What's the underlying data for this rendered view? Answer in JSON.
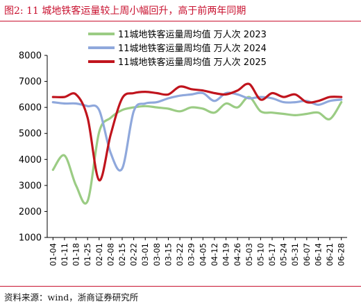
{
  "title": "图2:   11 城地铁客运量较上周小幅回升，高于前两年同期",
  "source": "资料来源：wind，浙商证券研究所",
  "chart_data": {
    "type": "line",
    "title": "",
    "xlabel": "",
    "ylabel": "",
    "ylim": [
      1000,
      8000
    ],
    "yticks": [
      1000,
      2000,
      3000,
      4000,
      5000,
      6000,
      7000,
      8000
    ],
    "grid": false,
    "legend_position": "top-center",
    "x": [
      "01-04",
      "01-11",
      "01-18",
      "01-25",
      "02-01",
      "02-08",
      "02-15",
      "02-22",
      "03-01",
      "03-08",
      "03-15",
      "03-22",
      "03-29",
      "04-05",
      "04-12",
      "04-19",
      "04-26",
      "05-03",
      "05-10",
      "05-17",
      "05-24",
      "05-31",
      "06-07",
      "06-14",
      "06-21",
      "06-28"
    ],
    "series": [
      {
        "name": "11城地铁客运量周均值  万人次  2023",
        "color": "#9bcc84",
        "values": [
          3600,
          4150,
          3000,
          2400,
          5050,
          5600,
          5900,
          6000,
          6050,
          6000,
          5950,
          5850,
          6000,
          5950,
          5800,
          6150,
          6000,
          6400,
          5850,
          5800,
          5750,
          5700,
          5750,
          5800,
          5550,
          6200
        ]
      },
      {
        "name": "11城地铁客运量周均值  万人次  2024",
        "color": "#8fa8dc",
        "values": [
          6200,
          6150,
          6150,
          6050,
          5900,
          4250,
          3650,
          5850,
          6150,
          6200,
          6350,
          6450,
          6500,
          6550,
          6250,
          6550,
          6500,
          6350,
          6400,
          6350,
          6200,
          6200,
          6250,
          6100,
          6250,
          6300
        ]
      },
      {
        "name": "11城地铁客运量周均值  万人次  2025",
        "color": "#c0141d",
        "values": [
          6400,
          6400,
          6500,
          5600,
          3200,
          4950,
          6350,
          6550,
          6600,
          6550,
          6500,
          6800,
          6700,
          6650,
          6550,
          6500,
          6650,
          6900,
          6300,
          6550,
          6400,
          6500,
          6200,
          6250,
          6400,
          6400
        ]
      }
    ]
  }
}
